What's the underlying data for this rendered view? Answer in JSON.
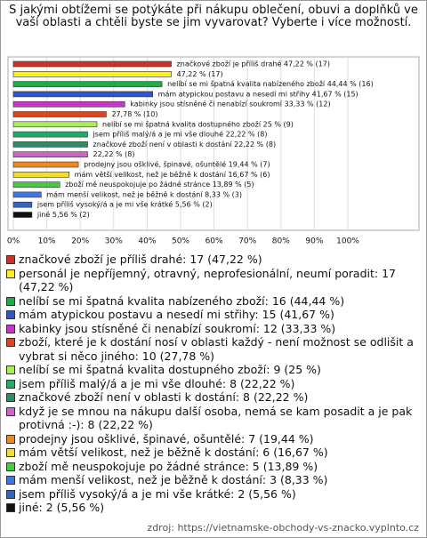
{
  "chart_data": {
    "type": "bar",
    "orientation": "horizontal",
    "title": "S jakými obtížemi se potýkáte při nákupu oblečení, obuvi a doplňků ve vaší oblasti a chtěli byste se jim vyvarovat? Vyberte i více možností.",
    "categories": [
      "značkové zboží je příliš drahé",
      "personál je nepříjemný, otravný, neprofesionální, neumí poradit",
      "nelíbí se mi špatná kvalita nabízeného zboží",
      "mám atypickou postavu a nesedí mi střihy",
      "kabinky jsou stísněné či nenabízí soukromí",
      "zboží, které je k dostání nosí v oblasti každý - není možnost se odlišit a vybrat si něco jiného",
      "nelíbí se mi špatná kvalita dostupného zboží",
      "jsem příliš malý/á a je mi vše dlouhé",
      "značkové zboží není v oblasti k dostání",
      "když je se mnou na nákupu další osoba, nemá se kam posadit a je pak protivná :-)",
      "prodejny jsou ošklivé, špinavé, ošuntělé",
      "mám větší velikost, než je běžně k dostání",
      "zboží mě neuspokojuje po žádné stránce",
      "mám menší velikost, než je běžně k dostání",
      "jsem příliš vysoký/á a je mi vše krátké",
      "jiné"
    ],
    "values": [
      47.22,
      47.22,
      44.44,
      41.67,
      33.33,
      27.78,
      25,
      22.22,
      22.22,
      22.22,
      19.44,
      16.67,
      13.89,
      8.33,
      5.56,
      5.56
    ],
    "value_labels": [
      "značkové zboží je příliš drahé 47,22 % (17)",
      "47,22 % (17)",
      "nelíbí se mi špatná kvalita nabízeného zboží 44,44 % (16)",
      "mám atypickou postavu a nesedí mi střihy 41,67 % (15)",
      "kabinky jsou stísněné či nenabízí soukromí 33,33 % (12)",
      "27,78 % (10)",
      "nelíbí se mi špatná kvalita dostupného zboží 25 % (9)",
      "jsem příliš malý/á a je mi vše dlouhé 22,22 % (8)",
      "značkové zboží není v oblasti k dostání 22,22 % (8)",
      "22,22 % (8)",
      "prodejny jsou ošklivé, špinavé, ošuntělé 19,44 % (7)",
      "mám větší velikost, než je běžně k dostání 16,67 % (6)",
      "zboží mě neuspokojuje po žádné stránce 13,89 % (5)",
      "mám menší velikost, než je běžně k dostání 8,33 % (3)",
      "jsem příliš vysoký/á a je mi vše krátké 5,56 % (2)",
      "jiné 5,56 % (2)"
    ],
    "legend_labels": [
      "značkové zboží je příliš drahé: 17 (47,22 %)",
      "personál je nepříjemný, otravný, neprofesionální, neumí poradit: 17 (47,22 %)",
      "nelíbí se mi špatná kvalita nabízeného zboží: 16 (44,44 %)",
      "mám atypickou postavu a nesedí mi střihy: 15 (41,67 %)",
      "kabinky jsou stísněné či nenabízí soukromí: 12 (33,33 %)",
      "zboží, které je k dostání nosí v oblasti každý - není možnost se odlišit a vybrat si něco jiného: 10 (27,78 %)",
      "nelíbí se mi špatná kvalita dostupného zboží: 9 (25 %)",
      "jsem příliš malý/á a je mi vše dlouhé: 8 (22,22 %)",
      "značkové zboží není v oblasti k dostání: 8 (22,22 %)",
      "když je se mnou na nákupu další osoba, nemá se kam posadit a je pak protivná :-): 8 (22,22 %)",
      "prodejny jsou ošklivé, špinavé, ošuntělé: 7 (19,44 %)",
      "mám větší velikost, než je běžně k dostání: 6 (16,67 %)",
      "zboží mě neuspokojuje po žádné stránce: 5 (13,89 %)",
      "mám menší velikost, než je běžně k dostání: 3 (8,33 %)",
      "jsem příliš vysoký/á a je mi vše krátké: 2 (5,56 %)",
      "jiné: 2 (5,56 %)"
    ],
    "colors": [
      "#cc3322",
      "#ffee22",
      "#22aa44",
      "#3355cc",
      "#cc33cc",
      "#dd4422",
      "#aaee55",
      "#22aa66",
      "#338866",
      "#cc66cc",
      "#ee8822",
      "#eedd33",
      "#44cc44",
      "#4477dd",
      "#3366bb",
      "#111111"
    ],
    "xlim": [
      0,
      100
    ],
    "xticks": [
      {
        "value": 0,
        "label": "0%"
      },
      {
        "value": 10,
        "label": "10%"
      },
      {
        "value": 20,
        "label": "20%"
      },
      {
        "value": 30,
        "label": "30%"
      },
      {
        "value": 40,
        "label": "40%"
      },
      {
        "value": 50,
        "label": "50%"
      },
      {
        "value": 60,
        "label": "60%"
      },
      {
        "value": 70,
        "label": "70%"
      },
      {
        "value": 80,
        "label": "80%"
      },
      {
        "value": 90,
        "label": "90%"
      },
      {
        "value": 100,
        "label": "100%"
      }
    ],
    "grid": true,
    "source": "zdroj: https://vietnamske-obchody-vs-znacko.vyplnto.cz"
  }
}
